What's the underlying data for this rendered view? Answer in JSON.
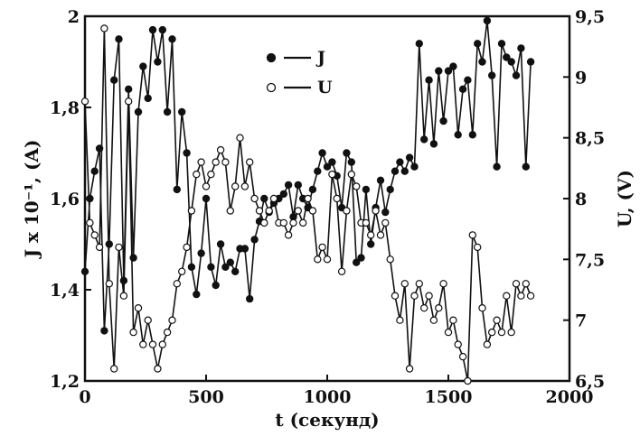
{
  "chart_data": {
    "type": "line",
    "xlabel": "t (секунд)",
    "ylabel_left": "J x 10⁻¹, (A)",
    "ylabel_right": "U, (V)",
    "xlim": [
      0,
      2000
    ],
    "ylim_left": [
      1.2,
      2.0
    ],
    "ylim_right": [
      6.5,
      9.5
    ],
    "x_ticks": [
      "0",
      "500",
      "1000",
      "1500",
      "2000"
    ],
    "y_left_ticks": [
      "1,2",
      "1,4",
      "1,6",
      "1,8",
      "2"
    ],
    "y_right_ticks": [
      "6,5",
      "7",
      "7,5",
      "8",
      "8,5",
      "9",
      "9,5"
    ],
    "legend_position": "top-center",
    "grid": false,
    "series": [
      {
        "name": "J",
        "marker": "filled-circle",
        "axis": "left",
        "x": [
          0,
          20,
          40,
          60,
          80,
          100,
          120,
          140,
          160,
          180,
          200,
          220,
          240,
          260,
          280,
          300,
          320,
          340,
          360,
          380,
          400,
          420,
          440,
          460,
          480,
          500,
          520,
          540,
          560,
          580,
          600,
          620,
          640,
          660,
          680,
          700,
          720,
          740,
          760,
          780,
          800,
          820,
          840,
          860,
          880,
          900,
          920,
          940,
          960,
          980,
          1000,
          1020,
          1040,
          1060,
          1080,
          1100,
          1120,
          1140,
          1160,
          1180,
          1200,
          1220,
          1240,
          1260,
          1280,
          1300,
          1320,
          1340,
          1360,
          1380,
          1400,
          1420,
          1440,
          1460,
          1480,
          1500,
          1520,
          1540,
          1560,
          1580,
          1600,
          1620,
          1640,
          1660,
          1680,
          1700,
          1720,
          1740,
          1760,
          1780,
          1800,
          1820,
          1840
        ],
        "values": [
          1.44,
          1.6,
          1.66,
          1.71,
          1.31,
          1.5,
          1.86,
          1.95,
          1.42,
          1.84,
          1.47,
          1.79,
          1.89,
          1.82,
          1.97,
          1.9,
          1.97,
          1.79,
          1.95,
          1.62,
          1.79,
          1.7,
          1.45,
          1.39,
          1.48,
          1.6,
          1.45,
          1.41,
          1.5,
          1.45,
          1.46,
          1.44,
          1.49,
          1.49,
          1.38,
          1.51,
          1.55,
          1.6,
          1.57,
          1.59,
          1.6,
          1.61,
          1.63,
          1.56,
          1.63,
          1.6,
          1.58,
          1.62,
          1.66,
          1.7,
          1.67,
          1.68,
          1.65,
          1.58,
          1.7,
          1.68,
          1.46,
          1.47,
          1.62,
          1.5,
          1.58,
          1.64,
          1.57,
          1.62,
          1.66,
          1.68,
          1.66,
          1.69,
          1.67,
          1.94,
          1.73,
          1.86,
          1.72,
          1.88,
          1.77,
          1.88,
          1.89,
          1.74,
          1.84,
          1.86,
          1.74,
          1.94,
          1.9,
          1.99,
          1.87,
          1.67,
          1.94,
          1.91,
          1.9,
          1.87,
          1.93,
          1.67,
          1.9
        ]
      },
      {
        "name": "U",
        "marker": "open-circle",
        "axis": "right",
        "x": [
          0,
          20,
          40,
          60,
          80,
          100,
          120,
          140,
          160,
          180,
          200,
          220,
          240,
          260,
          280,
          300,
          320,
          340,
          360,
          380,
          400,
          420,
          440,
          460,
          480,
          500,
          520,
          540,
          560,
          580,
          600,
          620,
          640,
          660,
          680,
          700,
          720,
          740,
          760,
          780,
          800,
          820,
          840,
          860,
          880,
          900,
          920,
          940,
          960,
          980,
          1000,
          1020,
          1040,
          1060,
          1080,
          1100,
          1120,
          1140,
          1160,
          1180,
          1200,
          1220,
          1240,
          1260,
          1280,
          1300,
          1320,
          1340,
          1360,
          1380,
          1400,
          1420,
          1440,
          1460,
          1480,
          1500,
          1520,
          1540,
          1560,
          1580,
          1600,
          1620,
          1640,
          1660,
          1680,
          1700,
          1720,
          1740,
          1760,
          1780,
          1800,
          1820,
          1840
        ],
        "values": [
          8.8,
          7.8,
          7.7,
          7.6,
          9.4,
          7.3,
          6.6,
          7.6,
          7.2,
          8.8,
          6.9,
          7.1,
          6.8,
          7.0,
          6.8,
          6.6,
          6.8,
          6.9,
          7.0,
          7.3,
          7.4,
          7.6,
          7.9,
          8.2,
          8.3,
          8.1,
          8.2,
          8.3,
          8.4,
          8.3,
          7.9,
          8.1,
          8.5,
          8.1,
          8.3,
          8.0,
          7.9,
          7.8,
          7.9,
          8.0,
          7.8,
          7.8,
          7.7,
          7.8,
          7.9,
          7.8,
          8.0,
          7.9,
          7.5,
          7.6,
          7.5,
          8.2,
          8.0,
          7.4,
          7.9,
          8.2,
          8.1,
          7.8,
          7.8,
          7.7,
          7.9,
          7.7,
          7.8,
          7.5,
          7.2,
          7.0,
          7.3,
          6.6,
          7.2,
          7.3,
          7.1,
          7.2,
          7.0,
          7.1,
          7.3,
          6.9,
          7.0,
          6.8,
          6.7,
          6.4,
          7.7,
          7.6,
          7.1,
          6.8,
          6.9,
          7.0,
          6.9,
          7.2,
          6.9,
          7.3,
          7.2,
          7.3,
          7.2
        ]
      }
    ]
  }
}
